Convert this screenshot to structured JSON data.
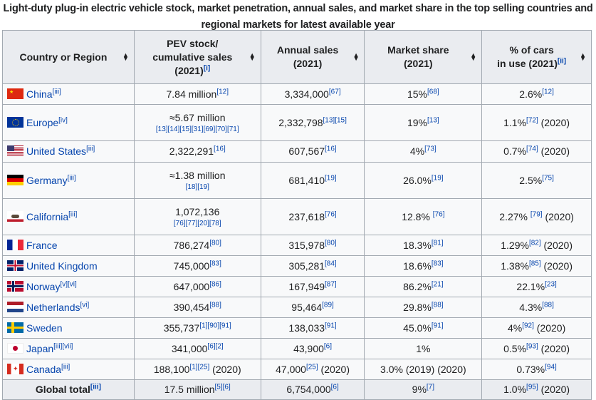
{
  "caption": "Light-duty plug-in electric vehicle stock, market penetration, annual sales, and market share in the top selling countries and regional markets for latest available year",
  "headers": [
    {
      "line1": "Country or Region",
      "line2": "",
      "line3": "",
      "cite": ""
    },
    {
      "line1": "PEV stock/",
      "line2": "cumulative sales",
      "line3": "(2021)",
      "cite": "[i]"
    },
    {
      "line1": "Annual sales",
      "line2": "(2021)",
      "line3": "",
      "cite": ""
    },
    {
      "line1": "Market share",
      "line2": "(2021)",
      "line3": "",
      "cite": ""
    },
    {
      "line1": "% of cars",
      "line2": "in use (2021)",
      "line3": "",
      "cite": "[ii]"
    }
  ],
  "sort_icon": "sort-arrows-icon",
  "rows": [
    {
      "flag": "china",
      "name": "China",
      "note": "[iii]",
      "h": 29,
      "cells": [
        {
          "text": "7.84 million",
          "cite": "[12]"
        },
        {
          "text": "3,334,000",
          "cite": "[67]"
        },
        {
          "text": "15%",
          "cite": "[68]"
        },
        {
          "text": "2.6%",
          "cite": "[12]"
        }
      ]
    },
    {
      "flag": "eu",
      "name": "Europe",
      "note": "[iv]",
      "h": 51,
      "cells": [
        {
          "text": "≈5.67 million",
          "citeline": "[13][14][15][31][69][70][71]"
        },
        {
          "text": "2,332,798",
          "cite": "[13][15]"
        },
        {
          "text": "19%",
          "cite": "[13]"
        },
        {
          "text": "1.1%",
          "cite": "[72]",
          "suffix": " (2020)"
        }
      ]
    },
    {
      "flag": "us",
      "name": "United States",
      "note": "[iii]",
      "h": 30,
      "cells": [
        {
          "text": "2,322,291",
          "cite": "[16]"
        },
        {
          "text": "607,567",
          "cite": "[16]"
        },
        {
          "text": "4%",
          "cite": "[73]"
        },
        {
          "text": "0.7%",
          "cite": "[74]",
          "suffix": " (2020)"
        }
      ]
    },
    {
      "flag": "de",
      "name": "Germany",
      "note": "[iii]",
      "h": 51,
      "cells": [
        {
          "text": "≈1.38 million",
          "citeline": "[18][19]"
        },
        {
          "text": "681,410",
          "cite": "[19]"
        },
        {
          "text": "26.0%",
          "cite": "[19]"
        },
        {
          "text": "2.5%",
          "cite": "[75]"
        }
      ]
    },
    {
      "flag": "ca-state",
      "name": "California",
      "note": "[iii]",
      "h": 51,
      "cells": [
        {
          "text": "1,072,136",
          "citeline": "[76][77][20][78]"
        },
        {
          "text": "237,618",
          "cite": "[76]"
        },
        {
          "text": "12.8% ",
          "cite": "[76]"
        },
        {
          "text": "2.27% ",
          "cite": "[79]",
          "suffix": " (2020)"
        }
      ]
    },
    {
      "flag": "fr",
      "name": "France",
      "note": "",
      "h": 29,
      "cells": [
        {
          "text": "786,274",
          "cite": "[80]"
        },
        {
          "text": "315,978",
          "cite": "[80]"
        },
        {
          "text": "18.3%",
          "cite": "[81]"
        },
        {
          "text": "1.29%",
          "cite": "[82]",
          "suffix": " (2020)"
        }
      ]
    },
    {
      "flag": "uk",
      "name": "United Kingdom",
      "note": "",
      "h": 29,
      "cells": [
        {
          "text": "745,000",
          "cite": "[83]"
        },
        {
          "text": "305,281",
          "cite": "[84]"
        },
        {
          "text": "18.6%",
          "cite": "[83]"
        },
        {
          "text": "1.38%",
          "cite": "[85]",
          "suffix": " (2020)"
        }
      ]
    },
    {
      "flag": "no",
      "name": "Norway",
      "note": "[v][vi]",
      "h": 29,
      "cells": [
        {
          "text": "647,000",
          "cite": "[86]"
        },
        {
          "text": "167,949",
          "cite": "[87]"
        },
        {
          "text": "86.2%",
          "cite": "[21]"
        },
        {
          "text": "22.1%",
          "cite": "[23]"
        }
      ]
    },
    {
      "flag": "nl",
      "name": "Netherlands",
      "note": "[vi]",
      "h": 29,
      "cells": [
        {
          "text": "390,454",
          "cite": "[88]"
        },
        {
          "text": "95,464",
          "cite": "[89]"
        },
        {
          "text": "29.8%",
          "cite": "[88]"
        },
        {
          "text": "4.3%",
          "cite": "[88]"
        }
      ]
    },
    {
      "flag": "se",
      "name": "Sweden",
      "note": "",
      "h": 29,
      "cells": [
        {
          "text": "355,737",
          "cite": "[1][90][91]"
        },
        {
          "text": "138,033",
          "cite": "[91]"
        },
        {
          "text": "45.0%",
          "cite": "[91]"
        },
        {
          "text": "4%",
          "cite": "[92]",
          "suffix": " (2020)"
        }
      ]
    },
    {
      "flag": "jp",
      "name": "Japan",
      "note": "[iii][vii]",
      "h": 29,
      "cells": [
        {
          "text": "341,000",
          "cite": "[6][2]"
        },
        {
          "text": "43,900",
          "cite": "[6]"
        },
        {
          "text": "1%"
        },
        {
          "text": "0.5%",
          "cite": "[93]",
          "suffix": " (2020)"
        }
      ]
    },
    {
      "flag": "canada",
      "name": "Canada",
      "note": "[iii]",
      "h": 29,
      "cells": [
        {
          "text": "188,100",
          "cite": "[1][25]",
          "suffix": " (2020)"
        },
        {
          "text": "47,000",
          "cite": "[25]",
          "suffix": " (2020)"
        },
        {
          "text": "3.0% (2019) (2020)"
        },
        {
          "text": "0.73%",
          "cite": "[94]"
        }
      ]
    },
    {
      "total": true,
      "name": "Global total",
      "note": "[iii]",
      "h": 28,
      "cells": [
        {
          "text": "17.5 million",
          "cite": "[5][6]"
        },
        {
          "text": "6,754,000",
          "cite": "[6]"
        },
        {
          "text": "9%",
          "cite": "[7]"
        },
        {
          "text": "1.0%",
          "cite": "[95]",
          "suffix": " (2020)"
        }
      ]
    }
  ]
}
